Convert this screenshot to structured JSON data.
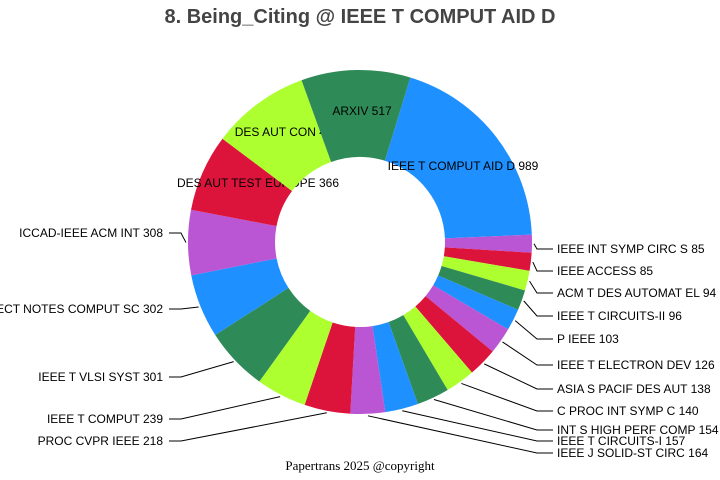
{
  "chart_data": {
    "type": "pie",
    "donut": true,
    "title": "8. Being_Citing @ IEEE T COMPUT AID D",
    "footer": "Papertrans 2025 @copyright",
    "palette": [
      "#1E90FF",
      "#BA55D3",
      "#DC143C",
      "#ADFF2F",
      "#2E8B57"
    ],
    "slices": [
      {
        "label": "IEEE T COMPUT AID D",
        "value": 989,
        "color": "#1E90FF"
      },
      {
        "label": "IEEE INT SYMP CIRC S",
        "value": 85,
        "color": "#BA55D3"
      },
      {
        "label": "IEEE ACCESS",
        "value": 85,
        "color": "#DC143C"
      },
      {
        "label": "ACM T DES AUTOMAT EL",
        "value": 94,
        "color": "#ADFF2F"
      },
      {
        "label": "IEEE T CIRCUITS-II",
        "value": 96,
        "color": "#2E8B57"
      },
      {
        "label": "P IEEE",
        "value": 103,
        "color": "#1E90FF"
      },
      {
        "label": "IEEE T ELECTRON DEV",
        "value": 126,
        "color": "#BA55D3"
      },
      {
        "label": "ASIA S PACIF DES AUT",
        "value": 138,
        "color": "#DC143C"
      },
      {
        "label": "C PROC INT SYMP C",
        "value": 140,
        "color": "#ADFF2F"
      },
      {
        "label": "INT S HIGH PERF COMP",
        "value": 154,
        "color": "#2E8B57"
      },
      {
        "label": "IEEE T CIRCUITS-I",
        "value": 157,
        "color": "#1E90FF"
      },
      {
        "label": "IEEE J SOLID-ST CIRC",
        "value": 164,
        "color": "#BA55D3"
      },
      {
        "label": "PROC CVPR IEEE",
        "value": 218,
        "color": "#DC143C"
      },
      {
        "label": "IEEE T COMPUT",
        "value": 239,
        "color": "#ADFF2F"
      },
      {
        "label": "IEEE T VLSI SYST",
        "value": 301,
        "color": "#2E8B57"
      },
      {
        "label": "LECT NOTES COMPUT SC",
        "value": 302,
        "color": "#1E90FF"
      },
      {
        "label": "ICCAD-IEEE ACM INT",
        "value": 308,
        "color": "#BA55D3"
      },
      {
        "label": "DES AUT TEST EUROPE",
        "value": 366,
        "color": "#DC143C"
      },
      {
        "label": "DES AUT CON",
        "value": 466,
        "color": "#ADFF2F"
      },
      {
        "label": "ARXIV",
        "value": 517,
        "color": "#2E8B57"
      }
    ]
  }
}
